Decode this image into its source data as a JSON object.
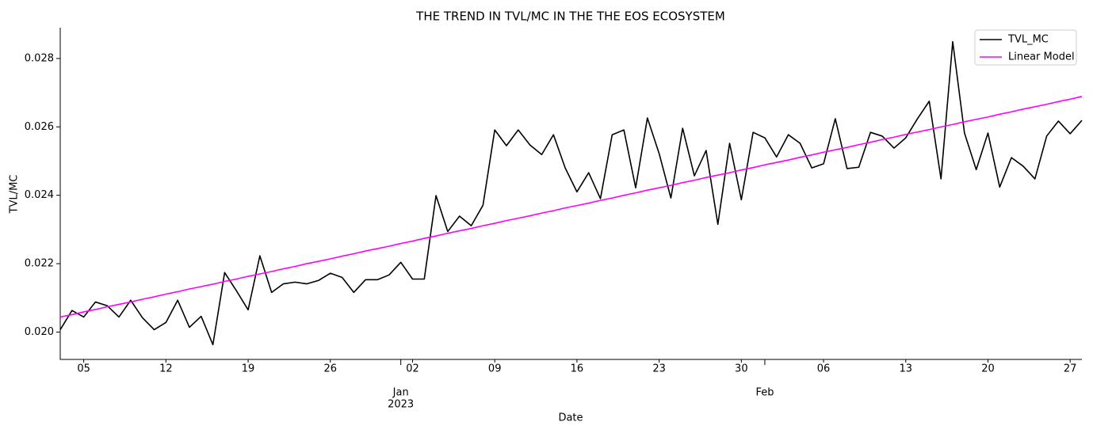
{
  "chart_data": {
    "type": "line",
    "title": "THE TREND IN TVL/MC IN THE THE EOS ECOSYSTEM",
    "x_label": "Date",
    "y_label": "TVL/MC",
    "x": [
      "2022-12-03",
      "2022-12-04",
      "2022-12-05",
      "2022-12-06",
      "2022-12-07",
      "2022-12-08",
      "2022-12-09",
      "2022-12-10",
      "2022-12-11",
      "2022-12-12",
      "2022-12-13",
      "2022-12-14",
      "2022-12-15",
      "2022-12-16",
      "2022-12-17",
      "2022-12-18",
      "2022-12-19",
      "2022-12-20",
      "2022-12-21",
      "2022-12-22",
      "2022-12-23",
      "2022-12-24",
      "2022-12-25",
      "2022-12-26",
      "2022-12-27",
      "2022-12-28",
      "2022-12-29",
      "2022-12-30",
      "2022-12-31",
      "2023-01-01",
      "2023-01-02",
      "2023-01-03",
      "2023-01-04",
      "2023-01-05",
      "2023-01-06",
      "2023-01-07",
      "2023-01-08",
      "2023-01-09",
      "2023-01-10",
      "2023-01-11",
      "2023-01-12",
      "2023-01-13",
      "2023-01-14",
      "2023-01-15",
      "2023-01-16",
      "2023-01-17",
      "2023-01-18",
      "2023-01-19",
      "2023-01-20",
      "2023-01-21",
      "2023-01-22",
      "2023-01-23",
      "2023-01-24",
      "2023-01-25",
      "2023-01-26",
      "2023-01-27",
      "2023-01-28",
      "2023-01-29",
      "2023-01-30",
      "2023-01-31",
      "2023-02-01",
      "2023-02-02",
      "2023-02-03",
      "2023-02-04",
      "2023-02-05",
      "2023-02-06",
      "2023-02-07",
      "2023-02-08",
      "2023-02-09",
      "2023-02-10",
      "2023-02-11",
      "2023-02-12",
      "2023-02-13",
      "2023-02-14",
      "2023-02-15",
      "2023-02-16",
      "2023-02-17",
      "2023-02-18",
      "2023-02-19",
      "2023-02-20",
      "2023-02-21",
      "2023-02-22",
      "2023-02-23",
      "2023-02-24",
      "2023-02-25",
      "2023-02-26",
      "2023-02-27",
      "2023-02-28"
    ],
    "series": [
      {
        "name": "TVL_MC",
        "color": "#000000",
        "values": [
          0.02007,
          0.02063,
          0.02044,
          0.02088,
          0.02077,
          0.02044,
          0.02093,
          0.02042,
          0.02007,
          0.02028,
          0.02093,
          0.02014,
          0.02046,
          0.01963,
          0.02174,
          0.02121,
          0.02065,
          0.02223,
          0.02116,
          0.02141,
          0.02146,
          0.02141,
          0.02151,
          0.02172,
          0.0216,
          0.02116,
          0.02153,
          0.02153,
          0.02167,
          0.02204,
          0.02155,
          0.02155,
          0.02399,
          0.02294,
          0.02339,
          0.02311,
          0.02371,
          0.02591,
          0.02545,
          0.02591,
          0.02547,
          0.02519,
          0.02577,
          0.0248,
          0.0241,
          0.02466,
          0.0239,
          0.02577,
          0.02591,
          0.02422,
          0.02626,
          0.02522,
          0.02392,
          0.02596,
          0.02457,
          0.02531,
          0.02315,
          0.02552,
          0.02387,
          0.02584,
          0.02568,
          0.02512,
          0.02577,
          0.02552,
          0.0248,
          0.02492,
          0.02624,
          0.02478,
          0.02482,
          0.02584,
          0.02573,
          0.02538,
          0.02568,
          0.02624,
          0.02675,
          0.02448,
          0.02849,
          0.02582,
          0.02475,
          0.02582,
          0.02424,
          0.0251,
          0.02485,
          0.02448,
          0.02573,
          0.02617,
          0.0258,
          0.02619
        ]
      },
      {
        "name": "Linear Model",
        "color": "#ff00ff",
        "values": [
          0.02044,
          0.02051,
          0.02059,
          0.02066,
          0.02074,
          0.02081,
          0.02088,
          0.02096,
          0.02103,
          0.02111,
          0.02118,
          0.02126,
          0.02133,
          0.0214,
          0.02148,
          0.02155,
          0.02163,
          0.0217,
          0.02177,
          0.02185,
          0.02192,
          0.022,
          0.02207,
          0.02214,
          0.02222,
          0.02229,
          0.02237,
          0.02244,
          0.02251,
          0.02259,
          0.02266,
          0.02274,
          0.02281,
          0.02289,
          0.02296,
          0.02303,
          0.02311,
          0.02318,
          0.02326,
          0.02333,
          0.0234,
          0.02348,
          0.02355,
          0.02363,
          0.0237,
          0.02377,
          0.02385,
          0.02392,
          0.024,
          0.02407,
          0.02415,
          0.02422,
          0.02429,
          0.02437,
          0.02444,
          0.02452,
          0.02459,
          0.02466,
          0.02474,
          0.02481,
          0.02489,
          0.02496,
          0.02503,
          0.02511,
          0.02518,
          0.02526,
          0.02533,
          0.0254,
          0.02548,
          0.02555,
          0.02563,
          0.0257,
          0.02578,
          0.02585,
          0.02592,
          0.026,
          0.02607,
          0.02615,
          0.02622,
          0.02629,
          0.02637,
          0.02644,
          0.02652,
          0.02659,
          0.02666,
          0.02674,
          0.02681,
          0.02689
        ]
      }
    ],
    "xlim": [
      "2022-12-03",
      "2023-02-28"
    ],
    "xticks": [
      {
        "value": "2022-12-05",
        "label": "05"
      },
      {
        "value": "2022-12-12",
        "label": "12"
      },
      {
        "value": "2022-12-19",
        "label": "19"
      },
      {
        "value": "2022-12-26",
        "label": "26"
      },
      {
        "value": "2023-01-02",
        "label": "02"
      },
      {
        "value": "2023-01-09",
        "label": "09"
      },
      {
        "value": "2023-01-16",
        "label": "16"
      },
      {
        "value": "2023-01-23",
        "label": "23"
      },
      {
        "value": "2023-01-30",
        "label": "30"
      },
      {
        "value": "2023-02-06",
        "label": "06"
      },
      {
        "value": "2023-02-13",
        "label": "13"
      },
      {
        "value": "2023-02-20",
        "label": "20"
      },
      {
        "value": "2023-02-27",
        "label": "27"
      }
    ],
    "xticks_major": [
      {
        "value": "2023-01-01",
        "label": "Jan",
        "sublabel": "2023"
      },
      {
        "value": "2023-02-01",
        "label": "Feb"
      }
    ],
    "ylim": [
      0.0192,
      0.0289
    ],
    "yticks": [
      {
        "value": 0.02,
        "label": "0.020"
      },
      0.022,
      0.024,
      0.026,
      0.028
    ],
    "legend": "upper right",
    "grid": false
  }
}
